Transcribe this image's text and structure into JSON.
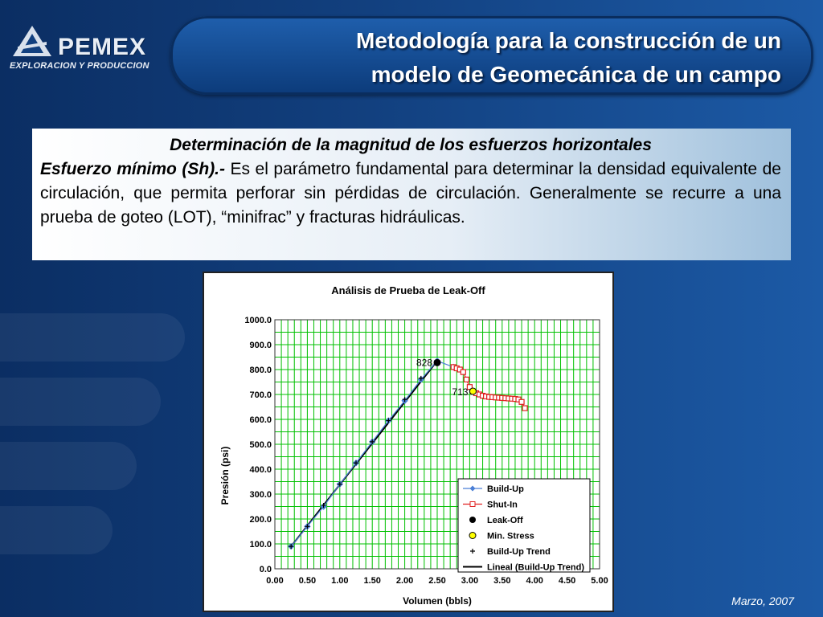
{
  "logo": {
    "brand": "PEMEX",
    "subtitle": "EXPLORACION Y PRODUCCION",
    "icon": "pemex-eagle-icon"
  },
  "title": {
    "line1": "Metodología para la construcción de un",
    "line2": "modelo de Geomecánica de un campo"
  },
  "content": {
    "heading": "Determinación de la magnitud de los esfuerzos horizontales",
    "term": "Esfuerzo mínimo (Sh).-",
    "body": "Es el parámetro fundamental para determinar la densidad equivalente de circulación, que permita perforar sin pérdidas de circulación. Generalmente se recurre a una prueba de goteo (LOT), “minifrac” y fracturas hidráulicas."
  },
  "footer": {
    "date": "Marzo, 2007"
  },
  "colors": {
    "grid": "#00c000",
    "buildup": "#4a7fd6",
    "shutin": "#e02020",
    "trend": "#000000",
    "minstress": "#ffff00"
  },
  "chart_data": {
    "type": "scatter",
    "title": "Análisis de Prueba de Leak-Off",
    "xlabel": "Volumen (bbls)",
    "ylabel": "Presión (psi)",
    "xlim": [
      0,
      5
    ],
    "ylim": [
      0,
      1000
    ],
    "xticks": [
      "0.00",
      "0.50",
      "1.00",
      "1.50",
      "2.00",
      "2.50",
      "3.00",
      "3.50",
      "4.00",
      "4.50",
      "5.00"
    ],
    "yticks": [
      "0.0",
      "100.0",
      "200.0",
      "300.0",
      "400.0",
      "500.0",
      "600.0",
      "700.0",
      "800.0",
      "900.0",
      "1000.0"
    ],
    "grid": true,
    "legend_position": "bottom-right",
    "series": [
      {
        "name": "Build-Up",
        "x": [
          0.25,
          0.5,
          0.75,
          1.0,
          1.25,
          1.5,
          1.75,
          2.0,
          2.25,
          2.5,
          2.75
        ],
        "y": [
          90,
          170,
          250,
          340,
          425,
          510,
          595,
          675,
          760,
          835,
          810
        ]
      },
      {
        "name": "Shut-In",
        "x": [
          2.75,
          2.8,
          2.85,
          2.9,
          2.95,
          3.0,
          3.05,
          3.1,
          3.15,
          3.2,
          3.25,
          3.3,
          3.35,
          3.4,
          3.45,
          3.5,
          3.55,
          3.6,
          3.65,
          3.7,
          3.75,
          3.8,
          3.85
        ],
        "y": [
          810,
          805,
          800,
          790,
          760,
          730,
          712,
          705,
          700,
          695,
          692,
          690,
          689,
          688,
          687,
          686,
          685,
          684,
          683,
          682,
          680,
          670,
          645
        ]
      },
      {
        "name": "Leak-Off",
        "x": [
          2.5
        ],
        "y": [
          828
        ]
      },
      {
        "name": "Min. Stress",
        "x": [
          3.05
        ],
        "y": [
          713
        ]
      },
      {
        "name": "Build-Up Trend",
        "x": [
          0.25,
          0.5,
          0.75,
          1.0,
          1.25,
          1.5,
          1.75,
          2.0,
          2.25
        ],
        "y": [
          90,
          170,
          255,
          340,
          425,
          510,
          595,
          680,
          765
        ]
      },
      {
        "name": "Lineal (Build-Up Trend)",
        "x": [
          0.25,
          2.5
        ],
        "y": [
          90,
          835
        ]
      }
    ],
    "annotations": [
      {
        "text": "828",
        "x": 2.5,
        "y": 828
      },
      {
        "text": "713",
        "x": 3.05,
        "y": 713
      }
    ]
  }
}
